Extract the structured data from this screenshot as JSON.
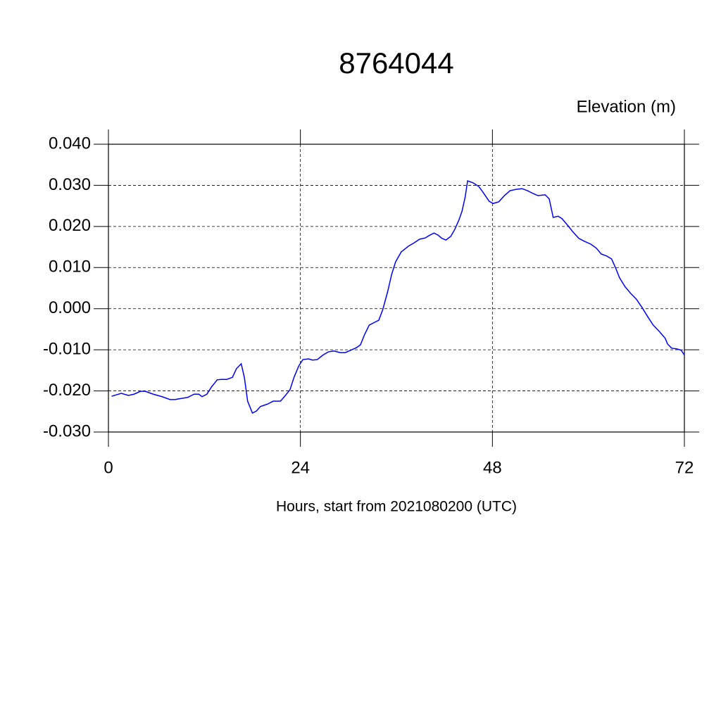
{
  "chart_data": {
    "type": "line",
    "title": "8764044",
    "subtitle": "Elevation (m)",
    "x_label": "Hours, start from 2021080200 (UTC)",
    "series": [
      {
        "name": "Elevation",
        "color": "#0000ff",
        "x": [
          0.4,
          1.6,
          2.5,
          3.2,
          4.0,
          4.6,
          5.6,
          6.7,
          7.7,
          8.3,
          9.2,
          9.9,
          10.7,
          11.3,
          11.7,
          12.3,
          12.9,
          13.6,
          14.1,
          14.8,
          15.5,
          16.0,
          16.6,
          17.0,
          17.4,
          18.0,
          18.5,
          19.0,
          19.9,
          20.6,
          21.5,
          22.0,
          22.7,
          23.2,
          23.8,
          24.3,
          25.0,
          25.5,
          26.1,
          26.8,
          27.5,
          28.2,
          29.0,
          29.6,
          30.3,
          31.0,
          31.5,
          32.0,
          32.6,
          33.3,
          33.8,
          34.3,
          34.9,
          35.4,
          35.9,
          36.6,
          37.5,
          38.2,
          38.9,
          39.6,
          40.1,
          40.7,
          41.2,
          41.7,
          42.2,
          42.8,
          43.3,
          43.8,
          44.2,
          44.6,
          44.9,
          45.6,
          46.3,
          46.8,
          47.6,
          48.1,
          48.8,
          49.5,
          50.2,
          50.9,
          51.7,
          52.4,
          53.1,
          53.7,
          54.6,
          55.1,
          55.6,
          56.2,
          56.7,
          57.4,
          58.1,
          58.8,
          59.5,
          60.3,
          61.0,
          61.6,
          62.3,
          62.9,
          63.4,
          63.9,
          64.6,
          65.3,
          66.0,
          66.7,
          67.4,
          68.1,
          68.8,
          69.6,
          69.9,
          70.4,
          71.1,
          71.6,
          72.0
        ],
        "values": [
          -0.0213,
          -0.0206,
          -0.0211,
          -0.0208,
          -0.0201,
          -0.0201,
          -0.0208,
          -0.0214,
          -0.0221,
          -0.0221,
          -0.0218,
          -0.0216,
          -0.0208,
          -0.0208,
          -0.0214,
          -0.0208,
          -0.019,
          -0.0173,
          -0.0172,
          -0.0172,
          -0.0167,
          -0.0146,
          -0.0134,
          -0.0168,
          -0.0225,
          -0.0254,
          -0.0249,
          -0.0238,
          -0.0232,
          -0.0225,
          -0.0225,
          -0.0214,
          -0.0197,
          -0.0167,
          -0.0139,
          -0.0124,
          -0.0122,
          -0.0125,
          -0.0124,
          -0.0113,
          -0.0105,
          -0.0103,
          -0.0107,
          -0.0107,
          -0.0101,
          -0.0095,
          -0.0088,
          -0.0064,
          -0.004,
          -0.0033,
          -0.0028,
          -0.0002,
          0.0041,
          0.0083,
          0.0114,
          0.0138,
          0.0152,
          0.016,
          0.0169,
          0.0172,
          0.0178,
          0.0184,
          0.0179,
          0.0171,
          0.0167,
          0.0176,
          0.0193,
          0.0215,
          0.0237,
          0.0272,
          0.0311,
          0.0306,
          0.0297,
          0.0284,
          0.0261,
          0.0256,
          0.026,
          0.0275,
          0.0287,
          0.029,
          0.0292,
          0.0287,
          0.028,
          0.0275,
          0.0277,
          0.0267,
          0.0222,
          0.0225,
          0.0219,
          0.0203,
          0.0186,
          0.0171,
          0.0164,
          0.0157,
          0.0147,
          0.0133,
          0.0128,
          0.0121,
          0.0099,
          0.0075,
          0.0053,
          0.0037,
          0.0023,
          0.0003,
          -0.0019,
          -0.004,
          -0.0054,
          -0.0072,
          -0.0086,
          -0.0096,
          -0.0098,
          -0.0101,
          -0.0113
        ]
      }
    ],
    "xlim": [
      0,
      72
    ],
    "xticks": [
      0,
      24,
      48,
      72
    ],
    "ylim": [
      -0.03,
      0.04
    ],
    "yticks": [
      {
        "value": -0.03,
        "label": "-0.030"
      },
      {
        "value": -0.02,
        "label": "-0.020"
      },
      {
        "value": -0.01,
        "label": "-0.010"
      },
      {
        "value": 0,
        "label": "0.000"
      },
      {
        "value": 0.01,
        "label": "0.010"
      },
      {
        "value": 0.02,
        "label": "0.020"
      },
      {
        "value": 0.03,
        "label": "0.030"
      },
      {
        "value": 0.04,
        "label": "0.040"
      }
    ],
    "grid": true
  }
}
